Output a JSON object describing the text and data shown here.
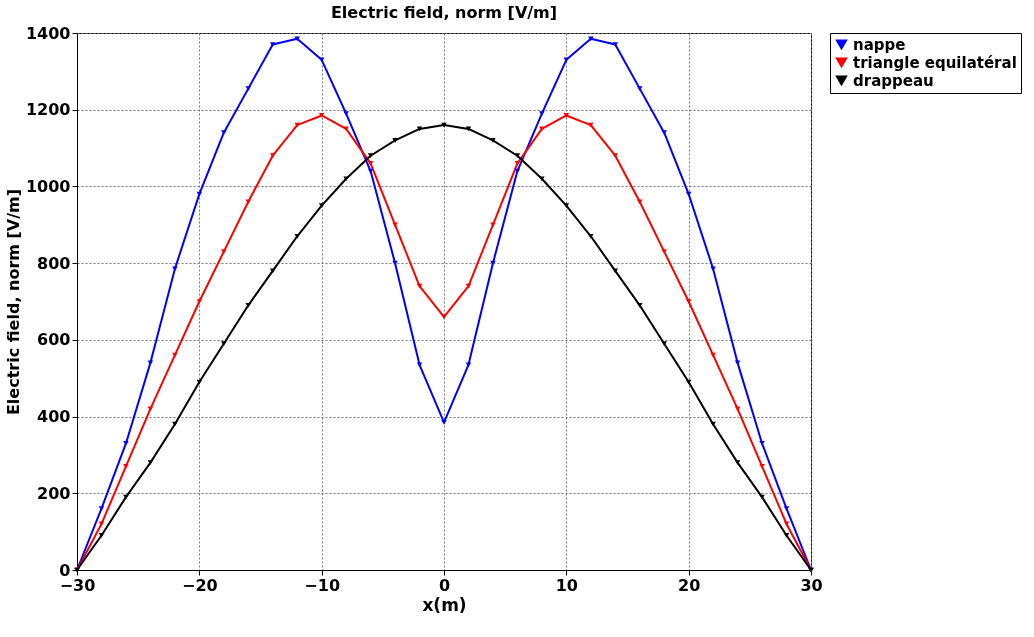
{
  "chart_data": {
    "type": "line",
    "title": "Electric field, norm [V/m]",
    "xlabel": "x(m)",
    "ylabel": "Electric field, norm [V/m]",
    "x": [
      -30,
      -28,
      -26,
      -24,
      -22,
      -20,
      -18,
      -16,
      -14,
      -12,
      -10,
      -8,
      -6,
      -4,
      -2,
      0,
      2,
      4,
      6,
      8,
      10,
      12,
      14,
      16,
      18,
      20,
      22,
      24,
      26,
      28,
      30
    ],
    "series": [
      {
        "name": "nappe",
        "color": "#0000ff",
        "values": [
          0,
          160,
          330,
          540,
          785,
          980,
          1140,
          1255,
          1370,
          1385,
          1330,
          1190,
          1040,
          800,
          535,
          385,
          535,
          800,
          1040,
          1190,
          1330,
          1385,
          1370,
          1255,
          1140,
          980,
          785,
          540,
          330,
          160,
          0
        ]
      },
      {
        "name": "triangle equilatéral",
        "color": "#ff0000",
        "values": [
          0,
          120,
          270,
          420,
          560,
          700,
          830,
          960,
          1080,
          1160,
          1185,
          1150,
          1060,
          900,
          740,
          660,
          740,
          900,
          1060,
          1150,
          1185,
          1160,
          1080,
          960,
          830,
          700,
          560,
          420,
          270,
          120,
          0
        ]
      },
      {
        "name": "drappeau",
        "color": "#000000",
        "values": [
          0,
          90,
          190,
          280,
          380,
          490,
          590,
          690,
          780,
          870,
          950,
          1020,
          1080,
          1120,
          1150,
          1160,
          1150,
          1120,
          1080,
          1020,
          950,
          870,
          780,
          690,
          590,
          490,
          380,
          280,
          190,
          90,
          0
        ]
      }
    ],
    "xlim": [
      -30,
      30
    ],
    "xticks": [
      -30,
      -20,
      -10,
      0,
      10,
      20,
      30
    ],
    "ylim": [
      0,
      1400
    ],
    "yticks": [
      0,
      200,
      400,
      600,
      800,
      1000,
      1200,
      1400
    ],
    "grid": true,
    "legend": "top right",
    "marker": "triangle",
    "line_style": "solid"
  }
}
